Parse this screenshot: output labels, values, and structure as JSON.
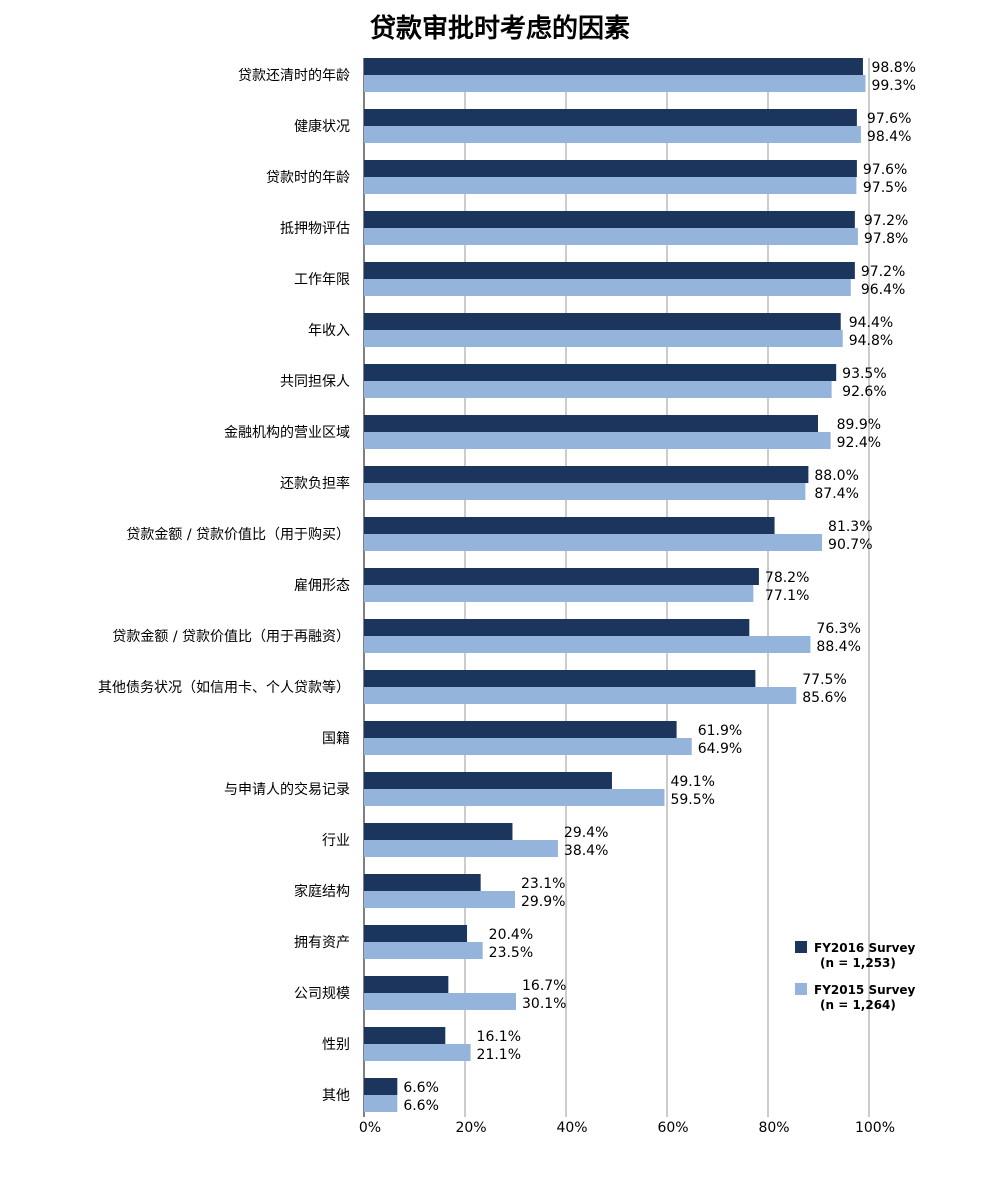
{
  "chart_data": {
    "type": "bar",
    "orientation": "horizontal",
    "title": "贷款审批时考虑的因素",
    "categories": [
      "贷款还清时的年龄",
      "健康状况",
      "贷款时的年龄",
      "抵押物评估",
      "工作年限",
      "年收入",
      "共同担保人",
      "金融机构的营业区域",
      "还款负担率",
      "贷款金额 / 贷款价值比（用于购买）",
      "雇佣形态",
      "贷款金额 / 贷款价值比（用于再融资）",
      "其他债务状况（如信用卡、个人贷款等）",
      "国籍",
      "与申请人的交易记录",
      "行业",
      "家庭结构",
      "拥有资产",
      "公司规模",
      "性别",
      "其他"
    ],
    "series": [
      {
        "name": "FY2016 Survey",
        "sample": "(n = 1,253)",
        "color": "#1b355c",
        "values": [
          98.8,
          97.6,
          97.6,
          97.2,
          97.2,
          94.4,
          93.5,
          89.9,
          88.0,
          81.3,
          78.2,
          76.3,
          77.5,
          61.9,
          49.1,
          29.4,
          23.1,
          20.4,
          16.7,
          16.1,
          6.6
        ],
        "labels": [
          "98.8%",
          "97.6%",
          "97.6%",
          "97.2%",
          "97.2%",
          "94.4%",
          "93.5%",
          "89.9%",
          "88.0%",
          "81.3%",
          "78.2%",
          "76.3%",
          "77.5%",
          "61.9%",
          "49.1%",
          "29.4%",
          "23.1%",
          "20.4%",
          "16.7%",
          "16.1%",
          "6.6%"
        ]
      },
      {
        "name": "FY2015 Survey",
        "sample": "(n = 1,264)",
        "color": "#95b4dc",
        "values": [
          99.3,
          98.4,
          97.5,
          97.8,
          96.4,
          94.8,
          92.6,
          92.4,
          87.4,
          90.7,
          77.1,
          88.4,
          85.6,
          64.9,
          59.5,
          38.4,
          29.9,
          23.5,
          30.1,
          21.1,
          6.6
        ],
        "labels": [
          "99.3%",
          "98.4%",
          "97.5%",
          "97.8%",
          "96.4%",
          "94.8%",
          "92.6%",
          "92.4%",
          "87.4%",
          "90.7%",
          "77.1%",
          "88.4%",
          "85.6%",
          "64.9%",
          "59.5%",
          "38.4%",
          "29.9%",
          "23.5%",
          "30.1%",
          "21.1%",
          "6.6%"
        ]
      }
    ],
    "xlim": [
      0,
      100
    ],
    "xticks": [
      "0%",
      "20%",
      "40%",
      "60%",
      "80%",
      "100%"
    ],
    "grid": "vertical",
    "gridColor": "#cccccc",
    "legend_position": "bottom-right"
  }
}
